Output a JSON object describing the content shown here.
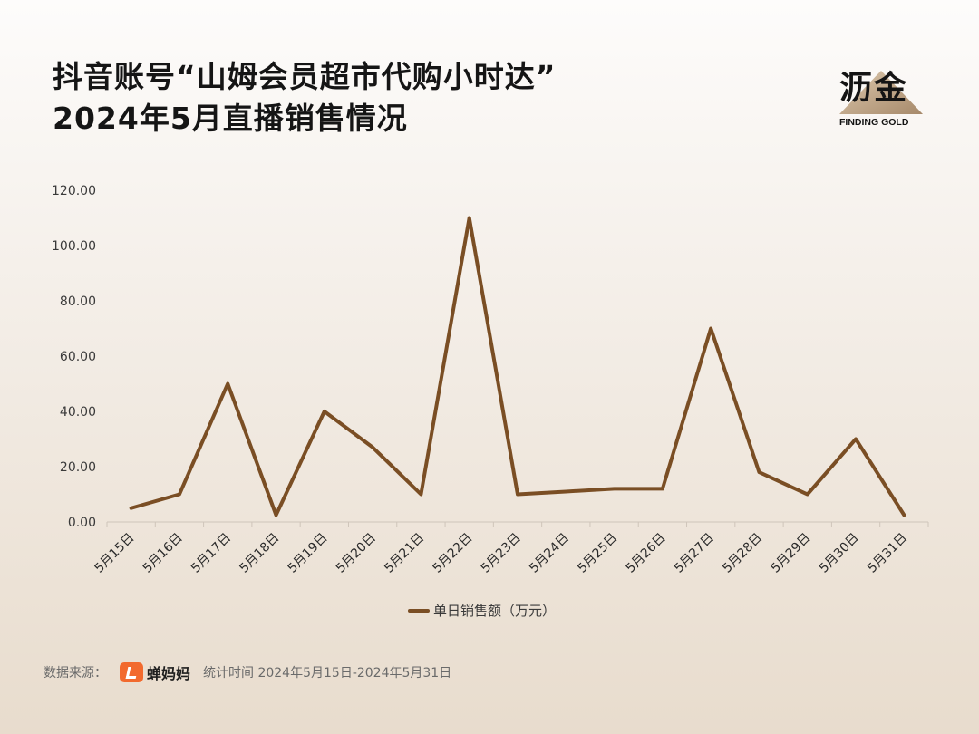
{
  "title": {
    "line1": "抖音账号“山姆会员超市代购小时达”",
    "line2": "2024年5月直播销售情况"
  },
  "logo": {
    "cn": "沥金",
    "en": "FINDING GOLD",
    "colors": {
      "mountain": "#b89a78",
      "text": "#141414"
    }
  },
  "chart_data": {
    "type": "line",
    "title": "",
    "xlabel": "",
    "ylabel": "",
    "categories": [
      "5月15日",
      "5月16日",
      "5月17日",
      "5月18日",
      "5月19日",
      "5月20日",
      "5月21日",
      "5月22日",
      "5月23日",
      "5月24日",
      "5月25日",
      "5月26日",
      "5月27日",
      "5月28日",
      "5月29日",
      "5月30日",
      "5月31日"
    ],
    "series": [
      {
        "name": "单日销售额（万元）",
        "values": [
          5,
          10,
          50,
          2.5,
          40,
          27,
          10,
          110,
          10,
          11,
          12,
          12,
          70,
          18,
          10,
          30,
          2.5
        ],
        "color": "#7a4e24"
      }
    ],
    "ylim": [
      0,
      120
    ],
    "yticks": [
      "0.00",
      "20.00",
      "40.00",
      "60.00",
      "80.00",
      "100.00",
      "120.00"
    ],
    "grid": false,
    "legend": "bottom"
  },
  "footer": {
    "source_label": "数据来源：",
    "brand_name": "蝉妈妈",
    "period": "统计时间 2024年5月15日-2024年5月31日",
    "brand_color": "#f26a2e"
  }
}
